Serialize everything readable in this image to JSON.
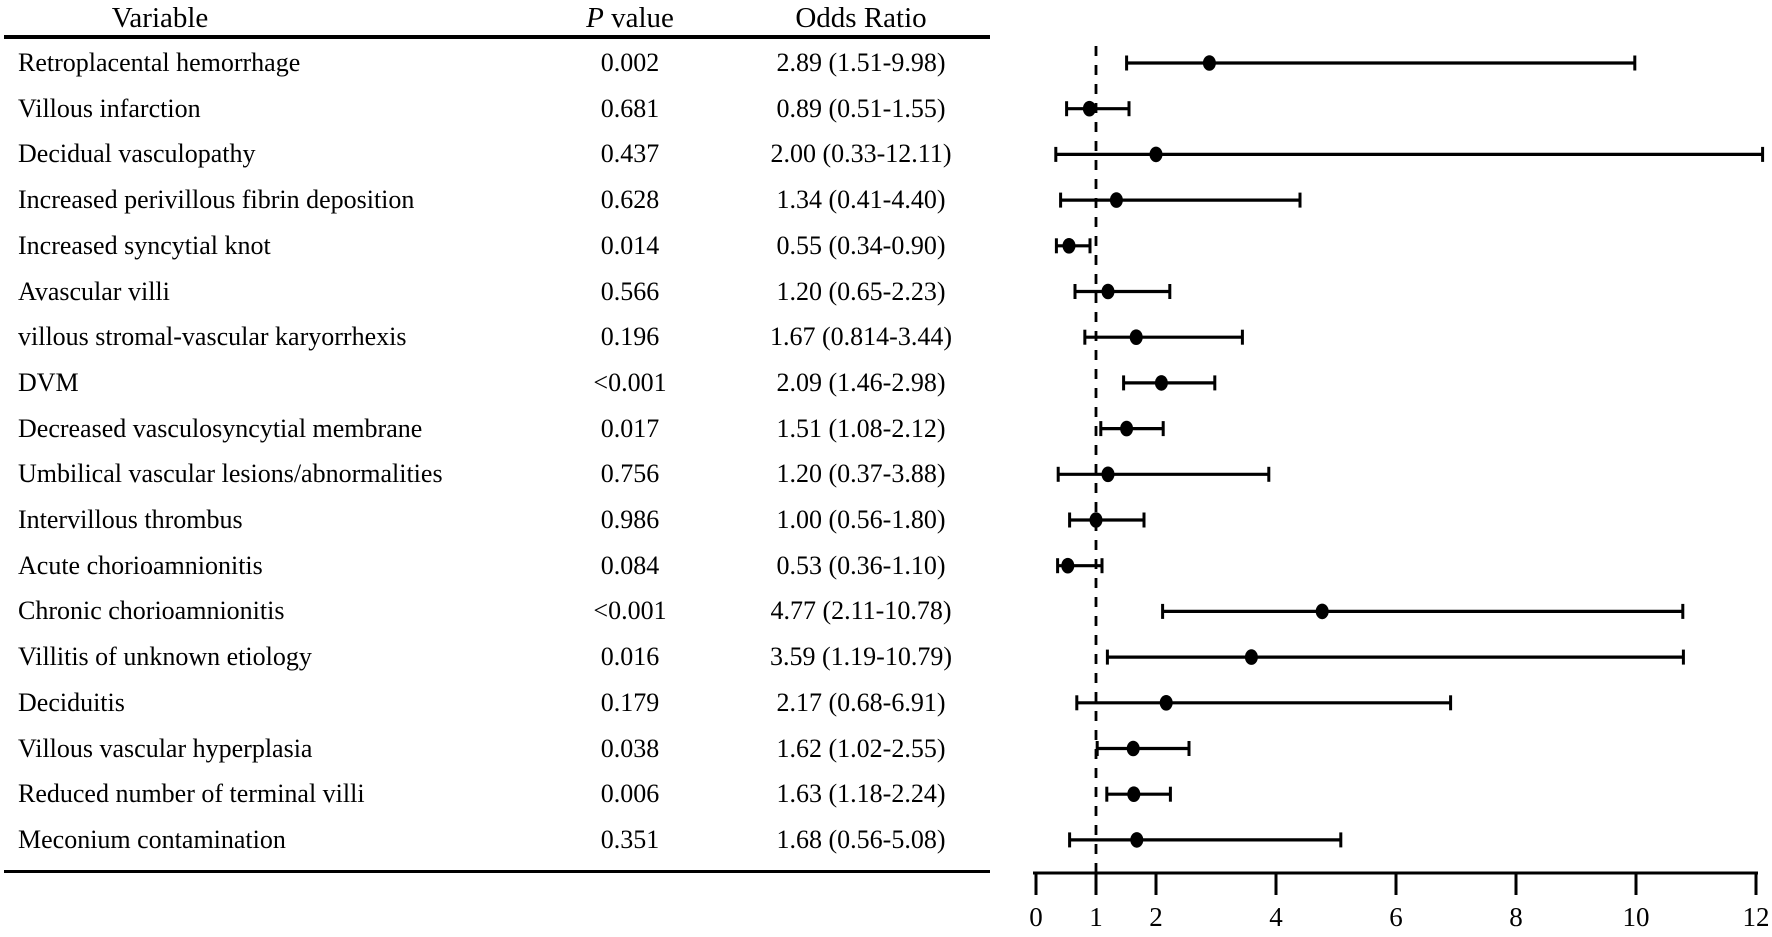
{
  "figure": {
    "headers": {
      "variable": "Variable",
      "p_italic": "P",
      "p_rest": " value",
      "odds_ratio": "Odds Ratio"
    }
  },
  "chart_data": {
    "type": "forest",
    "title": "",
    "xlabel": "",
    "ylabel": "",
    "legend": "none",
    "grid": false,
    "x_axis": {
      "min": 0,
      "max": 12,
      "ticks": [
        0,
        1,
        2,
        4,
        6,
        8,
        10,
        12
      ],
      "reference_line": 1,
      "reference_line_style": "dashed"
    },
    "columns": [
      "Variable",
      "P value",
      "Odds Ratio"
    ],
    "rows": [
      {
        "variable": "Retroplacental hemorrhage",
        "p_value": "0.002",
        "odds_ratio": "2.89 (1.51-9.98)",
        "or": 2.89,
        "ci_low": 1.51,
        "ci_high": 9.98
      },
      {
        "variable": "Villous infarction",
        "p_value": "0.681",
        "odds_ratio": "0.89 (0.51-1.55)",
        "or": 0.89,
        "ci_low": 0.51,
        "ci_high": 1.55
      },
      {
        "variable": "Decidual vasculopathy",
        "p_value": "0.437",
        "odds_ratio": "2.00 (0.33-12.11)",
        "or": 2.0,
        "ci_low": 0.33,
        "ci_high": 12.11
      },
      {
        "variable": "Increased perivillous fibrin deposition",
        "p_value": "0.628",
        "odds_ratio": "1.34 (0.41-4.40)",
        "or": 1.34,
        "ci_low": 0.41,
        "ci_high": 4.4
      },
      {
        "variable": "Increased syncytial knot",
        "p_value": "0.014",
        "odds_ratio": "0.55 (0.34-0.90)",
        "or": 0.55,
        "ci_low": 0.34,
        "ci_high": 0.9
      },
      {
        "variable": "Avascular villi",
        "p_value": "0.566",
        "odds_ratio": "1.20 (0.65-2.23)",
        "or": 1.2,
        "ci_low": 0.65,
        "ci_high": 2.23
      },
      {
        "variable": "villous stromal-vascular karyorrhexis",
        "p_value": "0.196",
        "odds_ratio": "1.67 (0.814-3.44)",
        "or": 1.67,
        "ci_low": 0.814,
        "ci_high": 3.44
      },
      {
        "variable": "DVM",
        "p_value": "<0.001",
        "odds_ratio": "2.09 (1.46-2.98)",
        "or": 2.09,
        "ci_low": 1.46,
        "ci_high": 2.98
      },
      {
        "variable": "Decreased vasculosyncytial membrane",
        "p_value": "0.017",
        "odds_ratio": "1.51 (1.08-2.12)",
        "or": 1.51,
        "ci_low": 1.08,
        "ci_high": 2.12
      },
      {
        "variable": "Umbilical vascular lesions/abnormalities",
        "p_value": "0.756",
        "odds_ratio": "1.20 (0.37-3.88)",
        "or": 1.2,
        "ci_low": 0.37,
        "ci_high": 3.88
      },
      {
        "variable": "Intervillous thrombus",
        "p_value": "0.986",
        "odds_ratio": "1.00 (0.56-1.80)",
        "or": 1.0,
        "ci_low": 0.56,
        "ci_high": 1.8
      },
      {
        "variable": "Acute chorioamnionitis",
        "p_value": "0.084",
        "odds_ratio": "0.53 (0.36-1.10)",
        "or": 0.53,
        "ci_low": 0.36,
        "ci_high": 1.1
      },
      {
        "variable": "Chronic chorioamnionitis",
        "p_value": "<0.001",
        "odds_ratio": "4.77 (2.11-10.78)",
        "or": 4.77,
        "ci_low": 2.11,
        "ci_high": 10.78
      },
      {
        "variable": "Villitis of unknown etiology",
        "p_value": "0.016",
        "odds_ratio": "3.59 (1.19-10.79)",
        "or": 3.59,
        "ci_low": 1.19,
        "ci_high": 10.79
      },
      {
        "variable": "Deciduitis",
        "p_value": "0.179",
        "odds_ratio": "2.17 (0.68-6.91)",
        "or": 2.17,
        "ci_low": 0.68,
        "ci_high": 6.91
      },
      {
        "variable": "Villous vascular hyperplasia",
        "p_value": "0.038",
        "odds_ratio": "1.62 (1.02-2.55)",
        "or": 1.62,
        "ci_low": 1.02,
        "ci_high": 2.55
      },
      {
        "variable": "Reduced number of terminal villi",
        "p_value": "0.006",
        "odds_ratio": "1.63 (1.18-2.24)",
        "or": 1.63,
        "ci_low": 1.18,
        "ci_high": 2.24
      },
      {
        "variable": "Meconium contamination",
        "p_value": "0.351",
        "odds_ratio": "1.68 (0.56-5.08)",
        "or": 1.68,
        "ci_low": 0.56,
        "ci_high": 5.08
      }
    ],
    "colors": {
      "marker": "#000000",
      "line": "#000000",
      "text": "#000000",
      "background": "#ffffff"
    }
  }
}
